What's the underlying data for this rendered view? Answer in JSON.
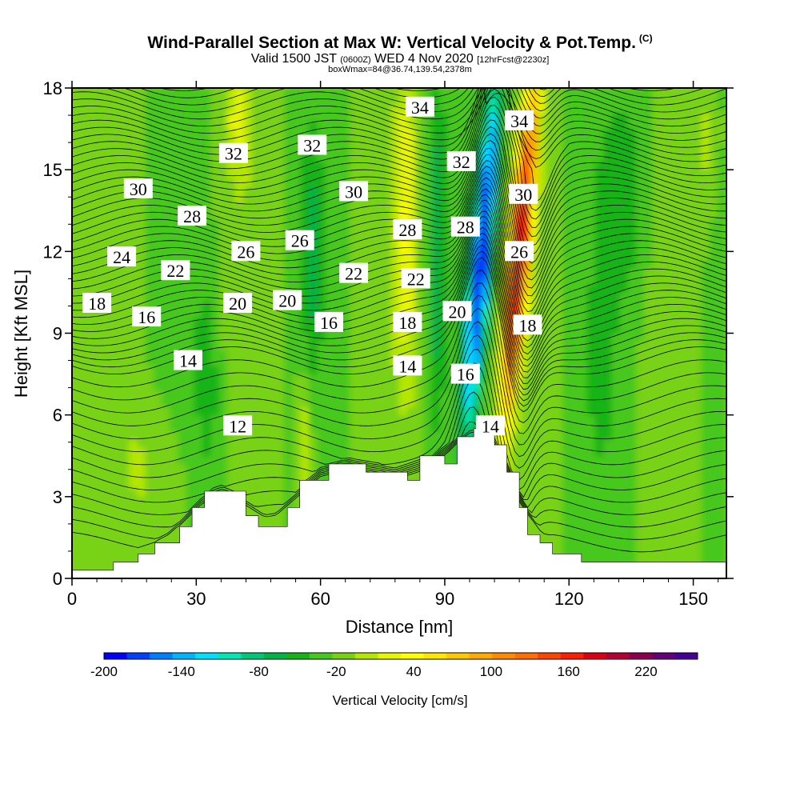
{
  "header": {
    "title": "Wind-Parallel Section at Max W: Vertical Velocity & Pot.Temp.",
    "copyright": "(C)",
    "valid_prefix": "Valid 1500 JST",
    "valid_utc": "(0600Z)",
    "valid_date": "WED 4 Nov 2020",
    "forecast": "[12hrFcst@2230z]",
    "box_info": "boxWmax=84@36.74,139.54,2378m"
  },
  "colors": {
    "background": "#ffffff",
    "terrain": "#ffffff",
    "contour": "#000000",
    "base_field": "#7ed40e",
    "palette": [
      "#0000ff",
      "#0040ff",
      "#0080ff",
      "#00b4ff",
      "#00e0ff",
      "#00e6b4",
      "#00c878",
      "#00b446",
      "#14b414",
      "#46c81e",
      "#78d214",
      "#b4e600",
      "#e6f500",
      "#ffff00",
      "#ffe600",
      "#ffc800",
      "#ffaa00",
      "#ff8c00",
      "#ff6e00",
      "#ff4600",
      "#ff1e00",
      "#dc0014",
      "#b40032",
      "#8c0050",
      "#640078",
      "#460096"
    ]
  },
  "chart_data": {
    "type": "contour",
    "xlabel": "Distance [nm]",
    "ylabel": "Height [Kft MSL]",
    "xlim": [
      0,
      158
    ],
    "ylim": [
      0,
      18
    ],
    "xticks": [
      0,
      30,
      60,
      90,
      120,
      150
    ],
    "yticks": [
      0,
      3,
      6,
      9,
      12,
      15,
      18
    ],
    "colorbar": {
      "label": "Vertical Velocity [cm/s]",
      "range": [
        -200,
        260
      ],
      "step": 20,
      "tick_values": [
        -200,
        -140,
        -80,
        -20,
        40,
        100,
        160,
        220
      ],
      "tick_labels": [
        "-200",
        "-140",
        "-80",
        "-20",
        "40",
        "100",
        "160",
        "220"
      ]
    },
    "terrain": [
      [
        0,
        0.3
      ],
      [
        10,
        0.3
      ],
      [
        10,
        0.6
      ],
      [
        16,
        0.6
      ],
      [
        16,
        0.9
      ],
      [
        20,
        0.9
      ],
      [
        20,
        1.3
      ],
      [
        26,
        1.3
      ],
      [
        26,
        1.9
      ],
      [
        29,
        1.9
      ],
      [
        29,
        2.6
      ],
      [
        32,
        2.6
      ],
      [
        32,
        3.2
      ],
      [
        42,
        3.2
      ],
      [
        42,
        2.3
      ],
      [
        45,
        2.3
      ],
      [
        45,
        1.9
      ],
      [
        52,
        1.9
      ],
      [
        52,
        2.6
      ],
      [
        55,
        2.6
      ],
      [
        55,
        3.6
      ],
      [
        62,
        3.6
      ],
      [
        62,
        4.2
      ],
      [
        71,
        4.2
      ],
      [
        71,
        3.9
      ],
      [
        81,
        3.9
      ],
      [
        81,
        3.6
      ],
      [
        84,
        3.6
      ],
      [
        84,
        4.5
      ],
      [
        90,
        4.5
      ],
      [
        90,
        4.2
      ],
      [
        93,
        4.2
      ],
      [
        93,
        5.2
      ],
      [
        97,
        5.2
      ],
      [
        97,
        5.5
      ],
      [
        102,
        5.5
      ],
      [
        102,
        4.9
      ],
      [
        105,
        4.9
      ],
      [
        105,
        3.9
      ],
      [
        108,
        3.9
      ],
      [
        108,
        2.6
      ],
      [
        110,
        2.6
      ],
      [
        110,
        1.6
      ],
      [
        113,
        1.6
      ],
      [
        113,
        1.3
      ],
      [
        116,
        1.3
      ],
      [
        116,
        0.9
      ],
      [
        123,
        0.9
      ],
      [
        123,
        0.6
      ],
      [
        158,
        0.6
      ]
    ],
    "potential_temperature_labels": [
      {
        "value": 34,
        "x": 84,
        "y": 17.3
      },
      {
        "value": 34,
        "x": 108,
        "y": 16.8
      },
      {
        "value": 32,
        "x": 39,
        "y": 15.6
      },
      {
        "value": 32,
        "x": 58,
        "y": 15.9
      },
      {
        "value": 32,
        "x": 94,
        "y": 15.3
      },
      {
        "value": 30,
        "x": 16,
        "y": 14.3
      },
      {
        "value": 30,
        "x": 68,
        "y": 14.2
      },
      {
        "value": 30,
        "x": 109,
        "y": 14.1
      },
      {
        "value": 28,
        "x": 29,
        "y": 13.3
      },
      {
        "value": 28,
        "x": 81,
        "y": 12.8
      },
      {
        "value": 28,
        "x": 95,
        "y": 12.9
      },
      {
        "value": 26,
        "x": 42,
        "y": 12.0
      },
      {
        "value": 26,
        "x": 55,
        "y": 12.4
      },
      {
        "value": 26,
        "x": 108,
        "y": 12.0
      },
      {
        "value": 24,
        "x": 12,
        "y": 11.8
      },
      {
        "value": 22,
        "x": 25,
        "y": 11.3
      },
      {
        "value": 22,
        "x": 68,
        "y": 11.2
      },
      {
        "value": 22,
        "x": 83,
        "y": 11.0
      },
      {
        "value": 20,
        "x": 40,
        "y": 10.1
      },
      {
        "value": 20,
        "x": 52,
        "y": 10.2
      },
      {
        "value": 20,
        "x": 93,
        "y": 9.8
      },
      {
        "value": 18,
        "x": 6,
        "y": 10.1
      },
      {
        "value": 18,
        "x": 81,
        "y": 9.4
      },
      {
        "value": 18,
        "x": 110,
        "y": 9.3
      },
      {
        "value": 16,
        "x": 18,
        "y": 9.6
      },
      {
        "value": 16,
        "x": 62,
        "y": 9.4
      },
      {
        "value": 16,
        "x": 95,
        "y": 7.5
      },
      {
        "value": 14,
        "x": 28,
        "y": 8.0
      },
      {
        "value": 14,
        "x": 81,
        "y": 7.8
      },
      {
        "value": 14,
        "x": 101,
        "y": 5.6
      },
      {
        "value": 12,
        "x": 40,
        "y": 5.6
      }
    ]
  }
}
